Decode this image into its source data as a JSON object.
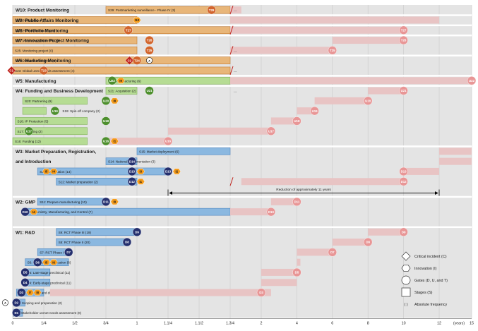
{
  "colors": {
    "band": "#e4e4e4",
    "separator": "#ffffff",
    "grid": "#c9c9c9",
    "pink_bar": "#e8c4c4",
    "pink_node": "#e89696",
    "orange_bar": "#e8b679",
    "orange_edge": "#c47a2e",
    "orange_node": "#d2652d",
    "green_bar": "#b6dc94",
    "green_edge": "#7fb158",
    "green_node": "#4d8f2d",
    "blue_bar": "#8bb8e0",
    "blue_edge": "#4f86bf",
    "blue_node": "#25306f",
    "innovation": "#f59c1c",
    "critical": "#c0231c",
    "break": "#c0231c",
    "text": "#1a1a1a"
  },
  "axis": {
    "ticks": [
      {
        "label": "0",
        "v": 0
      },
      {
        "label": "1/4",
        "v": 0.25
      },
      {
        "label": "1/2",
        "v": 0.5
      },
      {
        "label": "3/4",
        "v": 0.75
      },
      {
        "label": "1",
        "v": 1
      },
      {
        "label": "1.1/4",
        "v": 1.25
      },
      {
        "label": "1.1/2",
        "v": 1.5
      },
      {
        "label": "1.3/4",
        "v": 1.75
      },
      {
        "label": "2",
        "v": 2
      },
      {
        "label": "4",
        "v": 4
      },
      {
        "label": "6",
        "v": 6
      },
      {
        "label": "8",
        "v": 8
      },
      {
        "label": "10",
        "v": 10
      },
      {
        "label": "12",
        "v": 12
      },
      {
        "label": "15",
        "v": 15
      }
    ],
    "unit": "(years)"
  },
  "break_marks": [
    {
      "row": 0
    },
    {
      "row": 2
    },
    {
      "row": 4
    },
    {
      "row": 6
    },
    {
      "row": 17
    }
  ],
  "ellipses": [
    {
      "row": 0,
      "text": "..."
    },
    {
      "row": 4,
      "text": "..."
    },
    {
      "row": 6,
      "text": "..."
    },
    {
      "row": 8,
      "text": "..."
    }
  ],
  "stage_headers": [
    {
      "row": 0,
      "text": "W10: Product Monitoring"
    },
    {
      "row": 1,
      "text": "W9: Public Affairs Monitoring"
    },
    {
      "row": 2,
      "text": "W8: Portfolio Monitoring"
    },
    {
      "row": 3,
      "text": "W7: Innovation Project Monitoring"
    },
    {
      "row": 5,
      "text": "W6: Marketing Monitoring"
    },
    {
      "row": 7,
      "text": "W5: Manufacturing"
    },
    {
      "row": 8,
      "text": "W4: Funding and Business Development"
    },
    {
      "row": 14,
      "text": "W3: Market Preparation, Registration,"
    },
    {
      "row": 15,
      "text": "and Introduction"
    },
    {
      "row": 19,
      "text": "W2: GMP"
    },
    {
      "row": 22,
      "text": "W1: R&D"
    }
  ],
  "bars": [
    {
      "row": 0,
      "s": 0.75,
      "e": 1.75,
      "c": "orange",
      "text": "S29: Postmarketing surveillance - Phase IV (3)"
    },
    {
      "row": 0,
      "s": 1.75,
      "e": 1.84,
      "c": "pink",
      "text": ""
    },
    {
      "row": 1,
      "s": 0,
      "e": 1.0,
      "c": "orange",
      "text": "S26: Public affairs (2)"
    },
    {
      "row": 1,
      "s": 1.75,
      "e": 12,
      "c": "pink",
      "text": ""
    },
    {
      "row": 2,
      "s": 0,
      "e": 1.75,
      "c": "orange",
      "text": "S27: Portfolio monitoring (0)"
    },
    {
      "row": 2,
      "s": 1.75,
      "e": 10,
      "c": "pink",
      "text": ""
    },
    {
      "row": 3,
      "s": 0,
      "e": 1.0,
      "c": "orange",
      "text": "S28: Monitoring partnership (0)"
    },
    {
      "row": 3,
      "s": 6,
      "e": 10,
      "c": "pink",
      "text": ""
    },
    {
      "row": 4,
      "s": 0,
      "e": 1.0,
      "c": "orange",
      "text": "S25: Monitoring project (0)"
    },
    {
      "row": 4,
      "s": 1.75,
      "e": 6,
      "c": "pink",
      "text": ""
    },
    {
      "row": 5,
      "s": 0,
      "e": 1.75,
      "c": "orange",
      "text": "S24: Demand articulation (4)"
    },
    {
      "row": 6,
      "s": 0,
      "e": 1.75,
      "c": "orange",
      "text": "S23: Global unmet needs assessment (4)"
    },
    {
      "row": 7,
      "s": 0.75,
      "e": 1.75,
      "c": "green",
      "text": "S22: Manufacturing (6)"
    },
    {
      "row": 7,
      "s": 1.75,
      "e": 15,
      "c": "pink",
      "text": ""
    },
    {
      "row": 8,
      "s": 0.75,
      "e": 1.0,
      "c": "green",
      "text": "S21: Acquisition (2)"
    },
    {
      "row": 8,
      "s": 8,
      "e": 10,
      "c": "pink",
      "text": ""
    },
    {
      "row": 9,
      "s": 0.08,
      "e": 0.6,
      "c": "green",
      "text": "S20: Partnering (9)"
    },
    {
      "row": 9,
      "s": 5,
      "e": 8,
      "c": "pink",
      "text": ""
    },
    {
      "row": 10,
      "s": 0.08,
      "e": 0.27,
      "c": "green",
      "text": ""
    },
    {
      "row": 10,
      "s": 4,
      "e": 5,
      "c": "pink",
      "text": ""
    },
    {
      "row": 11,
      "s": 0.02,
      "e": 0.6,
      "c": "green",
      "text": "S18: IP Protection (5)"
    },
    {
      "row": 11,
      "s": 2.55,
      "e": 4,
      "c": "pink",
      "text": ""
    },
    {
      "row": 12,
      "s": 0.02,
      "e": 0.6,
      "c": "green",
      "text": "S17: Scouting (2)"
    },
    {
      "row": 12,
      "s": 1.25,
      "e": 2.55,
      "c": "pink",
      "text": ""
    },
    {
      "row": 13,
      "s": 0,
      "e": 0.6,
      "c": "green",
      "text": "S16: Funding (12)"
    },
    {
      "row": 13,
      "s": 0.75,
      "e": 1.25,
      "c": "pink",
      "text": ""
    },
    {
      "row": 14,
      "s": 1.0,
      "e": 1.75,
      "c": "blue",
      "text": "S15: Market deployment (6)"
    },
    {
      "row": 14,
      "s": 12,
      "e": 15,
      "c": "pink",
      "text": ""
    },
    {
      "row": 15,
      "s": 0.75,
      "e": 1.0,
      "c": "blue",
      "text": "S14: National implementation (3)"
    },
    {
      "row": 15,
      "s": 12,
      "e": 15,
      "c": "pink",
      "text": ""
    },
    {
      "row": 16,
      "s": 0.2,
      "e": 1.25,
      "c": "blue",
      "text": "S13: Registration (14)"
    },
    {
      "row": 16,
      "s": 10,
      "e": 12,
      "c": "pink",
      "text": ""
    },
    {
      "row": 17,
      "s": 0.35,
      "e": 1.0,
      "c": "blue",
      "text": "S12: Market preparation (2)"
    },
    {
      "row": 17,
      "s": 1.84,
      "e": 10,
      "c": "pink",
      "text": ""
    },
    {
      "row": 19,
      "s": 0.2,
      "e": 0.75,
      "c": "blue",
      "text": "S11: Prepare manufacturing (10)"
    },
    {
      "row": 19,
      "s": 2.55,
      "e": 4,
      "c": "pink",
      "text": ""
    },
    {
      "row": 20,
      "s": 0.08,
      "e": 1.75,
      "c": "blue",
      "text": "S10: Chemistry, Manufacturing, and Control (7)"
    },
    {
      "row": 20,
      "s": 1.75,
      "e": 2.55,
      "c": "pink",
      "text": ""
    },
    {
      "row": 22,
      "s": 0.35,
      "e": 1.0,
      "c": "blue",
      "text": "S9: RCT Phase III (19)"
    },
    {
      "row": 22,
      "s": 8,
      "e": 10,
      "c": "pink",
      "text": ""
    },
    {
      "row": 23,
      "s": 0.35,
      "e": 0.9,
      "c": "blue",
      "text": "S8: RCT Phase II (20)"
    },
    {
      "row": 23,
      "s": 6,
      "e": 8,
      "c": "pink",
      "text": ""
    },
    {
      "row": 24,
      "s": 0.2,
      "e": 0.45,
      "c": "blue",
      "text": "S7: RCT Phase I (21)"
    },
    {
      "row": 24,
      "s": 4,
      "e": 6,
      "c": "pink",
      "text": ""
    },
    {
      "row": 25,
      "s": 0.1,
      "e": 0.45,
      "c": "blue",
      "text": "S6: Clinical trial application (6)"
    },
    {
      "row": 25,
      "s": 4,
      "e": 4.2,
      "c": "pink",
      "text": ""
    },
    {
      "row": 26,
      "s": 0.1,
      "e": 0.3,
      "c": "blue",
      "text": "S5: Late-stage preclinical (11)"
    },
    {
      "row": 26,
      "s": 2,
      "e": 4,
      "c": "pink",
      "text": ""
    },
    {
      "row": 27,
      "s": 0.1,
      "e": 0.3,
      "c": "blue",
      "text": "S4: Early-stage preclinical (11)"
    },
    {
      "row": 27,
      "s": 2,
      "e": 4,
      "c": "pink",
      "text": ""
    },
    {
      "row": 28,
      "s": 0.03,
      "e": 0.25,
      "c": "blue",
      "text": "S3: Exploration and discovery (14)"
    },
    {
      "row": 28,
      "s": 0.3,
      "e": 2.55,
      "c": "pink",
      "text": ""
    },
    {
      "row": 29,
      "s": 0.01,
      "e": 0.1,
      "c": "blue",
      "text": "S2: Scoping and preparation (2)"
    },
    {
      "row": 30,
      "s": 0.005,
      "e": 0.08,
      "c": "blue",
      "text": "S1: Stakeholder unmet needs assessment (0)"
    }
  ],
  "nodes": [
    {
      "row": 0,
      "v": 1.6,
      "t": "c",
      "c": "orange",
      "text": "T29"
    },
    {
      "row": 1,
      "v": 1.0,
      "t": "h",
      "c": "innovation",
      "text": "I10"
    },
    {
      "row": 2,
      "v": 0.93,
      "t": "c",
      "c": "orange",
      "text": "T27"
    },
    {
      "row": 2,
      "v": 10,
      "t": "c",
      "c": "pink",
      "text": "T27"
    },
    {
      "row": 3,
      "v": 1.1,
      "t": "c",
      "c": "orange",
      "text": "T26"
    },
    {
      "row": 3,
      "v": 10,
      "t": "c",
      "c": "pink",
      "text": "T26"
    },
    {
      "row": 4,
      "v": 1.1,
      "t": "c",
      "c": "orange",
      "text": "T25"
    },
    {
      "row": 4,
      "v": 6,
      "t": "c",
      "c": "pink",
      "text": "T25"
    },
    {
      "row": 5,
      "v": 0.94,
      "t": "d",
      "c": "critical",
      "text": "C2"
    },
    {
      "row": 5,
      "v": 1.0,
      "t": "c",
      "c": "orange",
      "text": "T24"
    },
    {
      "row": 5,
      "v": 1.1,
      "t": "a",
      "c": "white",
      "text": "A"
    },
    {
      "row": 6,
      "v": -0.01,
      "t": "d",
      "c": "critical",
      "text": "C1"
    },
    {
      "row": 6,
      "v": 0.25,
      "t": "c",
      "c": "orange",
      "text": "T23"
    },
    {
      "row": 7,
      "v": 0.8,
      "t": "c",
      "c": "green",
      "text": "U22"
    },
    {
      "row": 7,
      "v": 0.87,
      "t": "h",
      "c": "innovation",
      "text": "I9"
    },
    {
      "row": 7,
      "v": 15,
      "t": "c",
      "c": "pink",
      "text": "U22"
    },
    {
      "row": 8,
      "v": 1.1,
      "t": "c",
      "c": "green",
      "text": "U21"
    },
    {
      "row": 8,
      "v": 10,
      "t": "c",
      "c": "pink",
      "text": "U21"
    },
    {
      "row": 9,
      "v": 0.75,
      "t": "c",
      "c": "green",
      "text": "U20"
    },
    {
      "row": 9,
      "v": 0.82,
      "t": "h",
      "c": "innovation",
      "text": "I8"
    },
    {
      "row": 9,
      "v": 8,
      "t": "c",
      "c": "pink",
      "text": "U20"
    },
    {
      "row": 10,
      "v": 0.34,
      "t": "c",
      "c": "green",
      "text": "U19"
    },
    {
      "row": 10,
      "v": 5,
      "t": "c",
      "c": "pink",
      "text": "U19"
    },
    {
      "row": 11,
      "v": 0.75,
      "t": "c",
      "c": "green",
      "text": "U18"
    },
    {
      "row": 11,
      "v": 4,
      "t": "c",
      "c": "pink",
      "text": "U18"
    },
    {
      "row": 12,
      "v": 0.13,
      "t": "c",
      "c": "green",
      "text": "U17"
    },
    {
      "row": 12,
      "v": 2.55,
      "t": "c",
      "c": "pink",
      "text": "U17"
    },
    {
      "row": 13,
      "v": 0.75,
      "t": "c",
      "c": "green",
      "text": "U16"
    },
    {
      "row": 13,
      "v": 0.82,
      "t": "h",
      "c": "innovation",
      "text": "I1"
    },
    {
      "row": 13,
      "v": 1.25,
      "t": "c",
      "c": "pink",
      "text": "U16"
    },
    {
      "row": 15,
      "v": 0.96,
      "t": "c",
      "c": "blue",
      "text": "D14"
    },
    {
      "row": 16,
      "v": 0.27,
      "t": "h",
      "c": "innovation",
      "text": "I5"
    },
    {
      "row": 16,
      "v": 0.33,
      "t": "h",
      "c": "innovation",
      "text": "I4"
    },
    {
      "row": 16,
      "v": 0.96,
      "t": "c",
      "c": "blue",
      "text": "D13"
    },
    {
      "row": 16,
      "v": 1.03,
      "t": "h",
      "c": "innovation",
      "text": "I3"
    },
    {
      "row": 16,
      "v": 1.25,
      "t": "c",
      "c": "blue",
      "text": "D13"
    },
    {
      "row": 16,
      "v": 1.32,
      "t": "h",
      "c": "innovation",
      "text": "I2"
    },
    {
      "row": 16,
      "v": 10,
      "t": "c",
      "c": "pink",
      "text": "D13"
    },
    {
      "row": 17,
      "v": 0.96,
      "t": "c",
      "c": "blue",
      "text": "D12"
    },
    {
      "row": 17,
      "v": 1.03,
      "t": "h",
      "c": "innovation",
      "text": "I1"
    },
    {
      "row": 17,
      "v": 10,
      "t": "c",
      "c": "pink",
      "text": "D12"
    },
    {
      "row": 19,
      "v": 0.75,
      "t": "c",
      "c": "blue",
      "text": "D11"
    },
    {
      "row": 19,
      "v": 0.82,
      "t": "h",
      "c": "innovation",
      "text": "I9"
    },
    {
      "row": 19,
      "v": 4,
      "t": "c",
      "c": "pink",
      "text": "D11"
    },
    {
      "row": 20,
      "v": 0.1,
      "t": "c",
      "c": "blue",
      "text": "D10"
    },
    {
      "row": 20,
      "v": 0.17,
      "t": "h",
      "c": "innovation",
      "text": "I4"
    },
    {
      "row": 20,
      "v": 2.55,
      "t": "c",
      "c": "pink",
      "text": "D10"
    },
    {
      "row": 22,
      "v": 1.0,
      "t": "c",
      "c": "blue",
      "text": "D9"
    },
    {
      "row": 22,
      "v": 10,
      "t": "c",
      "c": "pink",
      "text": "D9"
    },
    {
      "row": 23,
      "v": 0.92,
      "t": "c",
      "c": "blue",
      "text": "D8"
    },
    {
      "row": 23,
      "v": 8,
      "t": "c",
      "c": "pink",
      "text": "D8"
    },
    {
      "row": 24,
      "v": 0.45,
      "t": "c",
      "c": "blue",
      "text": "D7"
    },
    {
      "row": 24,
      "v": 6,
      "t": "c",
      "c": "pink",
      "text": "D7"
    },
    {
      "row": 25,
      "v": 0.2,
      "t": "c",
      "c": "blue",
      "text": "D6"
    },
    {
      "row": 25,
      "v": 0.27,
      "t": "h",
      "c": "innovation",
      "text": "I5"
    },
    {
      "row": 25,
      "v": 0.33,
      "t": "h",
      "c": "innovation",
      "text": "I6"
    },
    {
      "row": 26,
      "v": 0.1,
      "t": "c",
      "c": "blue",
      "text": "D5"
    },
    {
      "row": 26,
      "v": 4,
      "t": "c",
      "c": "pink",
      "text": "D5"
    },
    {
      "row": 27,
      "v": 0.1,
      "t": "c",
      "c": "blue",
      "text": "D4"
    },
    {
      "row": 28,
      "v": 0.07,
      "t": "c",
      "c": "blue",
      "text": "D3"
    },
    {
      "row": 28,
      "v": 0.14,
      "t": "h",
      "c": "innovation",
      "text": "I7"
    },
    {
      "row": 28,
      "v": 0.2,
      "t": "h",
      "c": "innovation",
      "text": "I8"
    },
    {
      "row": 28,
      "v": 2.0,
      "t": "c",
      "c": "pink",
      "text": "D3"
    },
    {
      "row": 29,
      "v": -0.06,
      "t": "a",
      "c": "white",
      "text": "A"
    },
    {
      "row": 29,
      "v": 0.03,
      "t": "c",
      "c": "blue",
      "text": "D2"
    },
    {
      "row": 30,
      "v": 0.03,
      "t": "c",
      "c": "blue",
      "text": "D1"
    }
  ],
  "annotation": {
    "row": 18,
    "from": 1.25,
    "to": 12,
    "text": "Reduction of approximately 11 years"
  },
  "free_labels": [
    {
      "row": 10,
      "v": 0.4,
      "text": "S19: Spin-off company (2)"
    }
  ],
  "legend": [
    {
      "shape": "diamond",
      "text": "Critical incident (C)"
    },
    {
      "shape": "hexagon",
      "text": "Innovation (I)"
    },
    {
      "shape": "circle",
      "text": "Gates (D, U, and T)"
    },
    {
      "shape": "square",
      "text": "Stages (S)"
    },
    {
      "shape": "paren",
      "text": "Absolute frequency"
    }
  ],
  "legend_paren": "(   )"
}
